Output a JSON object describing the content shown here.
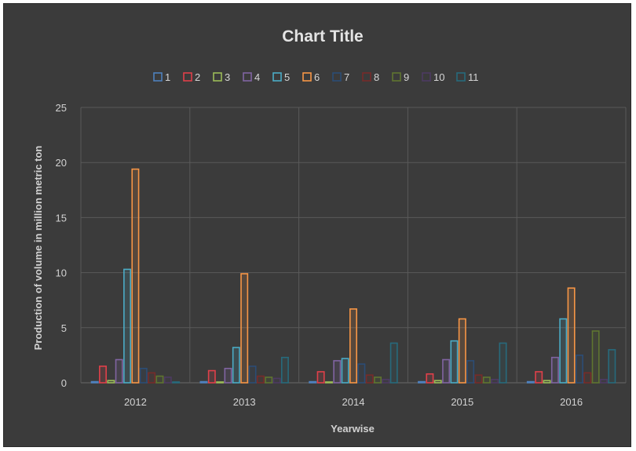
{
  "chart_data": {
    "type": "bar",
    "title": "Chart Title",
    "xlabel": "Yearwise",
    "ylabel": "Production  of volume in million metric ton",
    "ylim": [
      0,
      25
    ],
    "yticks": [
      0,
      5,
      10,
      15,
      20,
      25
    ],
    "categories": [
      "2012",
      "2013",
      "2014",
      "2015",
      "2016"
    ],
    "grid": true,
    "legend_position": "top",
    "series": [
      {
        "name": "1",
        "color": "#4f81bd",
        "values": [
          0.1,
          0.1,
          0.1,
          0.1,
          0.1
        ]
      },
      {
        "name": "2",
        "color": "#e0404a",
        "values": [
          1.5,
          1.1,
          1.0,
          0.8,
          1.0
        ]
      },
      {
        "name": "3",
        "color": "#9bbb59",
        "values": [
          0.2,
          0.0,
          0.0,
          0.2,
          0.2
        ]
      },
      {
        "name": "4",
        "color": "#8064a2",
        "values": [
          2.1,
          1.3,
          2.0,
          2.1,
          2.3
        ]
      },
      {
        "name": "5",
        "color": "#4bacc6",
        "values": [
          10.3,
          3.2,
          2.2,
          3.8,
          5.8
        ]
      },
      {
        "name": "6",
        "color": "#f79646",
        "values": [
          19.4,
          9.9,
          6.7,
          5.8,
          8.6
        ]
      },
      {
        "name": "7",
        "color": "#2c4d75",
        "values": [
          1.3,
          1.5,
          1.7,
          2.0,
          2.5
        ]
      },
      {
        "name": "8",
        "color": "#772c2a",
        "values": [
          0.9,
          0.6,
          0.7,
          0.7,
          0.9
        ]
      },
      {
        "name": "9",
        "color": "#5f7530",
        "values": [
          0.6,
          0.5,
          0.5,
          0.5,
          4.7
        ]
      },
      {
        "name": "10",
        "color": "#4d3b62",
        "values": [
          0.5,
          0.4,
          0.3,
          0.3,
          0.3
        ]
      },
      {
        "name": "11",
        "color": "#276a7c",
        "values": [
          0.0,
          2.3,
          3.6,
          3.6,
          3.0
        ]
      }
    ]
  }
}
